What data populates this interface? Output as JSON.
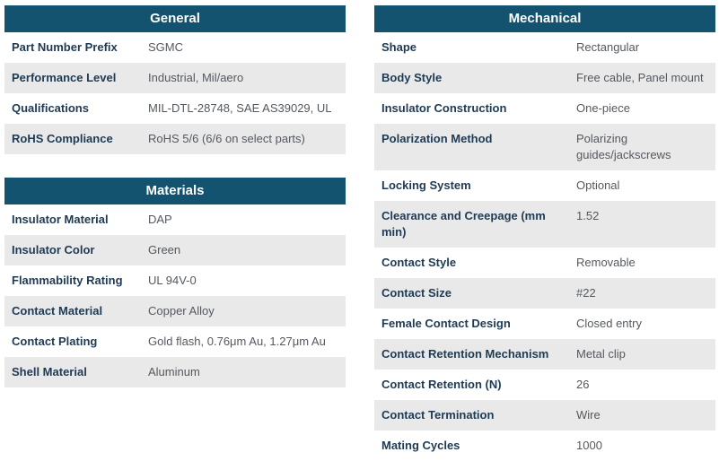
{
  "theme": {
    "header_bg": "#14536f",
    "header_text": "#ffffff",
    "row_alt_bg": "#e9e9e9",
    "label_color": "#1f3a52",
    "value_color": "#54595f"
  },
  "tables": [
    {
      "title": "General",
      "rows": [
        {
          "label": "Part Number Prefix",
          "value": "SGMC"
        },
        {
          "label": "Performance Level",
          "value": "Industrial, Mil/aero"
        },
        {
          "label": "Qualifications",
          "value": "MIL-DTL-28748, SAE AS39029, UL"
        },
        {
          "label": "RoHS Compliance",
          "value": "RoHS 5/6 (6/6 on select parts)"
        }
      ]
    },
    {
      "title": "Materials",
      "rows": [
        {
          "label": "Insulator Material",
          "value": "DAP"
        },
        {
          "label": "Insulator Color",
          "value": "Green"
        },
        {
          "label": "Flammability Rating",
          "value": "UL 94V-0"
        },
        {
          "label": "Contact Material",
          "value": "Copper Alloy"
        },
        {
          "label": "Contact Plating",
          "value": "Gold flash, 0.76μm Au, 1.27μm Au"
        },
        {
          "label": "Shell Material",
          "value": "Aluminum"
        }
      ]
    },
    {
      "title": "Mechanical",
      "rows": [
        {
          "label": "Shape",
          "value": "Rectangular"
        },
        {
          "label": "Body Style",
          "value": "Free cable, Panel mount"
        },
        {
          "label": "Insulator Construction",
          "value": "One-piece"
        },
        {
          "label": "Polarization Method",
          "value": "Polarizing guides/jackscrews"
        },
        {
          "label": "Locking System",
          "value": "Optional"
        },
        {
          "label": "Clearance and Creepage (mm min)",
          "value": "1.52"
        },
        {
          "label": "Contact Style",
          "value": "Removable"
        },
        {
          "label": "Contact Size",
          "value": "#22"
        },
        {
          "label": "Female Contact Design",
          "value": "Closed entry"
        },
        {
          "label": "Contact Retention Mechanism",
          "value": "Metal clip"
        },
        {
          "label": "Contact Retention (N)",
          "value": "26"
        },
        {
          "label": "Contact Termination",
          "value": "Wire"
        },
        {
          "label": "Mating Cycles",
          "value": "1000"
        }
      ]
    }
  ]
}
